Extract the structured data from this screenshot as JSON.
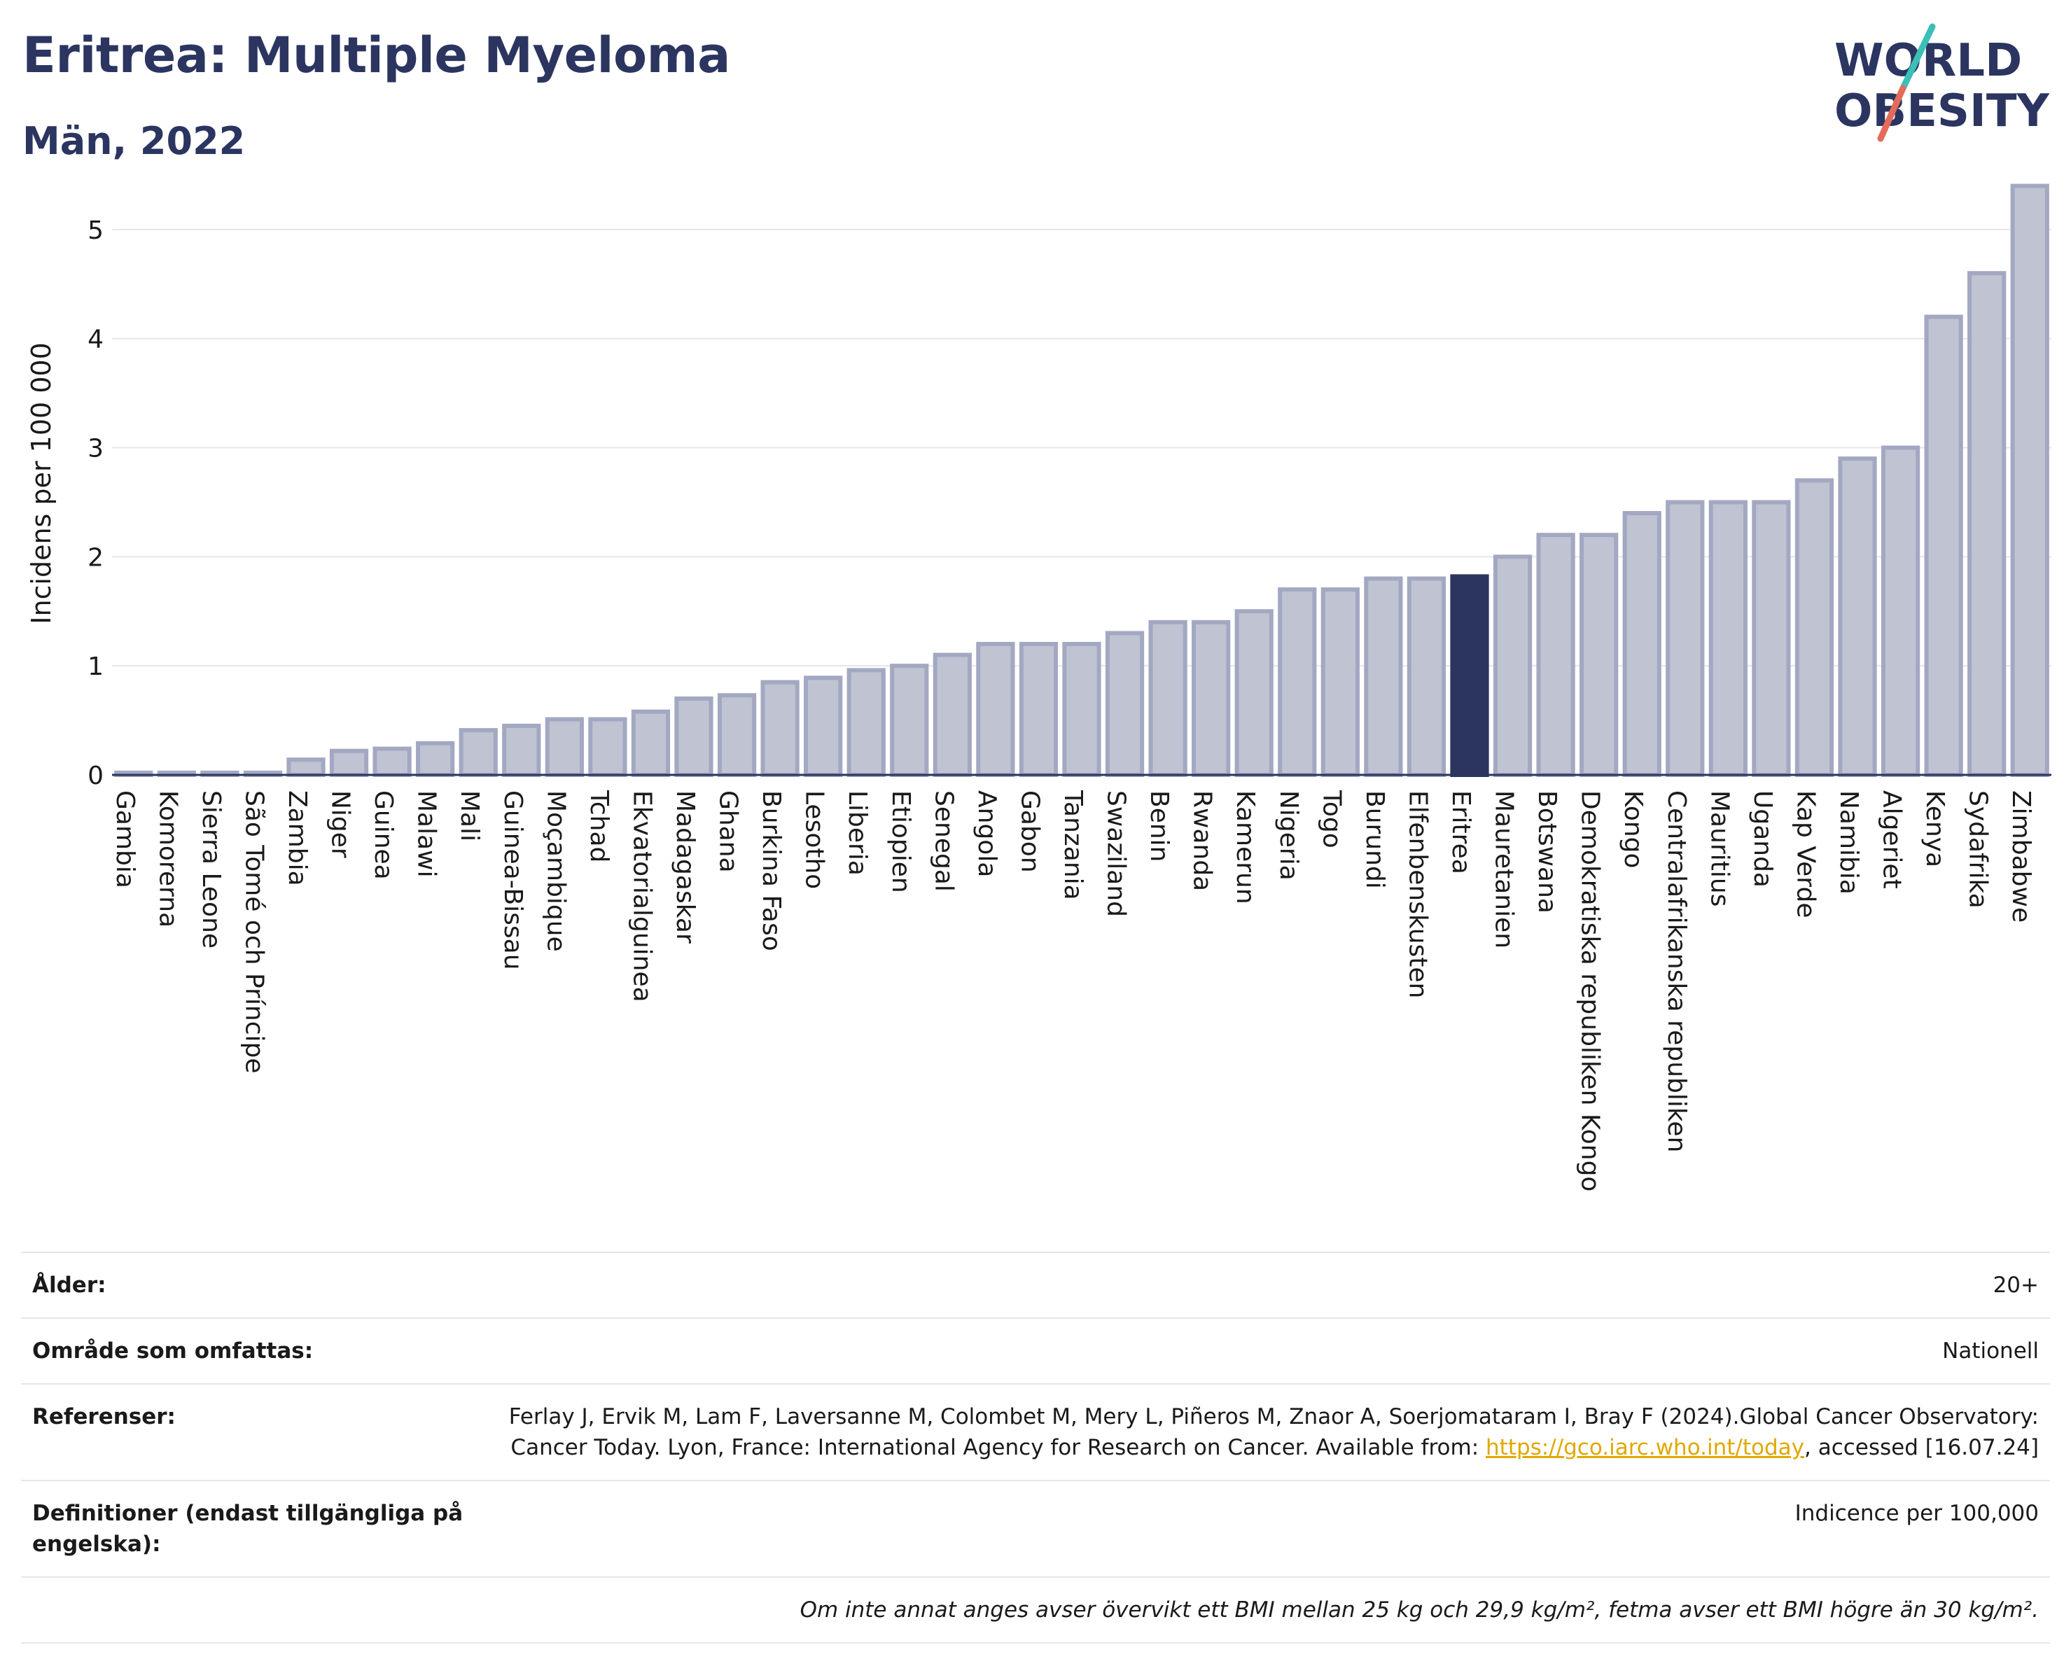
{
  "header": {
    "title": "Eritrea: Multiple Myeloma",
    "subtitle": "Män, 2022"
  },
  "logo": {
    "line1": "WORLD",
    "line2": "OBESITY",
    "accent_teal": "#3bbfb7",
    "accent_red": "#e36b5a",
    "text_color": "#2b3560"
  },
  "chart_data": {
    "type": "bar",
    "ylabel": "Incidens per 100 000",
    "xlabel": "",
    "ylim": [
      0,
      5.5
    ],
    "yticks": [
      0,
      1,
      2,
      3,
      4,
      5
    ],
    "grid": true,
    "highlight": "Eritrea",
    "colors": {
      "bar": "#bfc3d2",
      "bar_edge": "#a3a8c2",
      "highlight": "#2b3560"
    },
    "categories": [
      "Gambia",
      "Komorerna",
      "Sierra Leone",
      "São Tomé och Príncipe",
      "Zambia",
      "Niger",
      "Guinea",
      "Malawi",
      "Mali",
      "Guinea-Bissau",
      "Moçambique",
      "Tchad",
      "Ekvatorialguinea",
      "Madagaskar",
      "Ghana",
      "Burkina Faso",
      "Lesotho",
      "Liberia",
      "Etiopien",
      "Senegal",
      "Angola",
      "Gabon",
      "Tanzania",
      "Swaziland",
      "Benin",
      "Rwanda",
      "Kamerun",
      "Nigeria",
      "Togo",
      "Burundi",
      "Elfenbenskusten",
      "Eritrea",
      "Mauretanien",
      "Botswana",
      "Demokratiska republiken Kongo",
      "Kongo",
      "Centralafrikanska republiken",
      "Mauritius",
      "Uganda",
      "Kap Verde",
      "Namibia",
      "Algeriet",
      "Kenya",
      "Sydafrika",
      "Zimbabwe"
    ],
    "values": [
      0.02,
      0.02,
      0.02,
      0.02,
      0.14,
      0.22,
      0.24,
      0.29,
      0.41,
      0.45,
      0.51,
      0.51,
      0.58,
      0.7,
      0.73,
      0.85,
      0.89,
      0.96,
      1.0,
      1.1,
      1.2,
      1.2,
      1.2,
      1.3,
      1.4,
      1.4,
      1.5,
      1.7,
      1.7,
      1.8,
      1.8,
      1.82,
      2.0,
      2.2,
      2.2,
      2.4,
      2.5,
      2.5,
      2.5,
      2.7,
      2.9,
      3.0,
      4.2,
      4.6,
      5.4
    ]
  },
  "meta": {
    "rows": [
      {
        "key": "Ålder:",
        "value": "20+"
      },
      {
        "key": "Område som omfattas:",
        "value": "Nationell"
      }
    ],
    "refs_key": "Referenser:",
    "refs_text": "Ferlay J, Ervik M, Lam F, Laversanne M, Colombet M, Mery L, Piñeros M, Znaor A, Soerjomataram I, Bray F (2024).Global Cancer Observatory: Cancer Today. Lyon, France: International Agency for Research on Cancer. Available from: ",
    "refs_link": "https://gco.iarc.who.int/today",
    "refs_tail": ", accessed [16.07.24]",
    "defs_key": "Definitioner (endast tillgängliga på engelska):",
    "defs_value": "Indicence per 100,000",
    "note": "Om inte annat anges avser övervikt ett BMI mellan 25 kg och 29,9 kg/m², fetma avser ett BMI högre än 30 kg/m²."
  }
}
